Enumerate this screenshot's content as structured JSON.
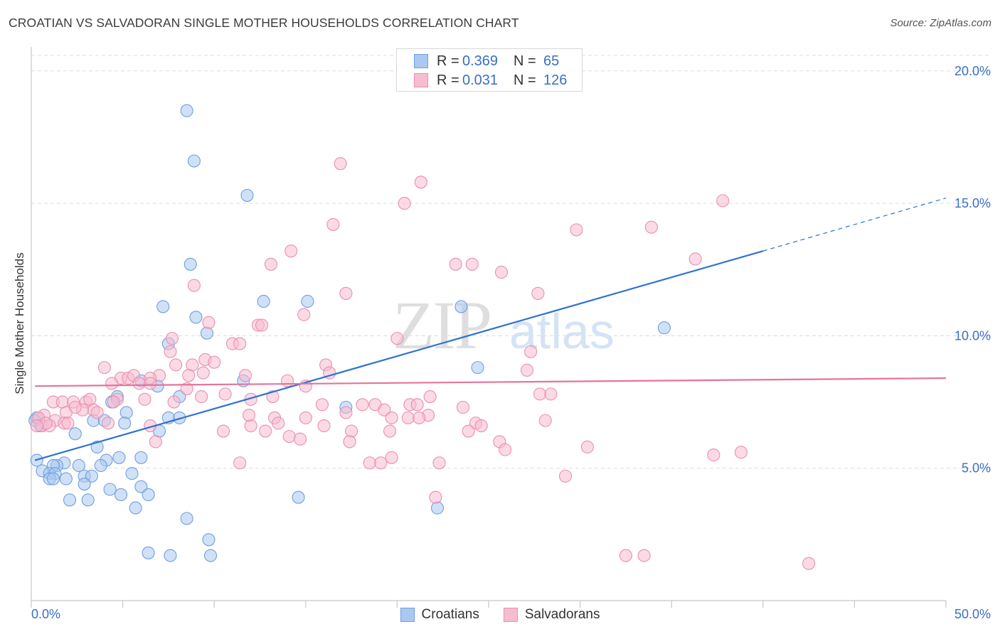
{
  "title": "CROATIAN VS SALVADORAN SINGLE MOTHER HOUSEHOLDS CORRELATION CHART",
  "source": "Source: ZipAtlas.com",
  "legend_top": [
    {
      "r_label": "R =",
      "r_value": "0.369",
      "n_label": "N =",
      "n_value": "65"
    },
    {
      "r_label": "R =",
      "r_value": "0.031",
      "n_label": "N =",
      "n_value": "126"
    }
  ],
  "legend_bottom": [
    "Croatians",
    "Salvadorans"
  ],
  "colors": {
    "croatian_fill": "#aac8f0",
    "croatian_stroke": "#6f9fdc",
    "croatian_line": "#2e72d2",
    "salvadoran_fill": "#f7bcd0",
    "salvadoran_stroke": "#ea8fae",
    "salvadoran_line": "#e5749b",
    "tick_label": "#3a6fc4"
  },
  "chart_data": {
    "type": "scatter",
    "title": "CROATIAN VS SALVADORAN SINGLE MOTHER HOUSEHOLDS CORRELATION CHART",
    "xlabel": "",
    "ylabel": "Single Mother Households",
    "xlim": [
      0,
      50
    ],
    "ylim": [
      0,
      20.8
    ],
    "x_tick_labels": [
      "0.0%",
      "50.0%"
    ],
    "y_ticks": [
      5,
      10,
      15,
      20
    ],
    "y_tick_labels": [
      "5.0%",
      "10.0%",
      "15.0%",
      "20.0%"
    ],
    "grid": true,
    "legend_position": "top-center",
    "watermark": "ZIPatlas",
    "series": [
      {
        "name": "Croatians",
        "R": 0.369,
        "N": 65,
        "trend": {
          "x0": 0.2,
          "y0": 5.3,
          "x1": 40,
          "y1": 13.2,
          "dash_to_x": 50,
          "dash_to_y": 15.2
        },
        "points": [
          [
            8.5,
            18.5
          ],
          [
            8.9,
            16.6
          ],
          [
            11.8,
            15.3
          ],
          [
            8.7,
            12.7
          ],
          [
            7.2,
            11.1
          ],
          [
            12.7,
            11.3
          ],
          [
            15.1,
            11.3
          ],
          [
            9.0,
            10.7
          ],
          [
            9.6,
            10.1
          ],
          [
            23.5,
            11.1
          ],
          [
            34.6,
            10.3
          ],
          [
            7.5,
            9.7
          ],
          [
            24.4,
            8.8
          ],
          [
            11.6,
            8.3
          ],
          [
            6.0,
            8.3
          ],
          [
            6.9,
            8.1
          ],
          [
            4.7,
            7.7
          ],
          [
            8.1,
            7.7
          ],
          [
            4.4,
            7.5
          ],
          [
            5.2,
            7.1
          ],
          [
            17.2,
            7.3
          ],
          [
            7.5,
            6.9
          ],
          [
            8.1,
            6.9
          ],
          [
            3.4,
            6.8
          ],
          [
            4.0,
            6.8
          ],
          [
            5.1,
            6.7
          ],
          [
            0.3,
            6.9
          ],
          [
            0.5,
            6.6
          ],
          [
            7.0,
            6.4
          ],
          [
            2.4,
            6.3
          ],
          [
            3.6,
            5.8
          ],
          [
            4.8,
            5.4
          ],
          [
            6.0,
            5.4
          ],
          [
            4.1,
            5.3
          ],
          [
            0.3,
            5.3
          ],
          [
            1.8,
            5.2
          ],
          [
            2.6,
            5.1
          ],
          [
            1.4,
            5.1
          ],
          [
            1.2,
            5.1
          ],
          [
            3.8,
            5.1
          ],
          [
            0.6,
            4.9
          ],
          [
            1.0,
            4.8
          ],
          [
            1.3,
            4.8
          ],
          [
            5.5,
            4.8
          ],
          [
            2.9,
            4.7
          ],
          [
            3.3,
            4.7
          ],
          [
            1.9,
            4.6
          ],
          [
            1.0,
            4.6
          ],
          [
            1.2,
            4.6
          ],
          [
            2.9,
            4.4
          ],
          [
            4.3,
            4.2
          ],
          [
            6.0,
            4.3
          ],
          [
            4.9,
            4.0
          ],
          [
            6.4,
            4.0
          ],
          [
            2.1,
            3.8
          ],
          [
            3.1,
            3.8
          ],
          [
            14.6,
            3.9
          ],
          [
            5.7,
            3.5
          ],
          [
            22.2,
            3.5
          ],
          [
            8.5,
            3.1
          ],
          [
            9.7,
            2.3
          ],
          [
            6.4,
            1.8
          ],
          [
            7.6,
            1.7
          ],
          [
            9.8,
            1.7
          ],
          [
            0.2,
            6.8
          ]
        ]
      },
      {
        "name": "Salvadorans",
        "R": 0.031,
        "N": 126,
        "trend": {
          "x0": 0.2,
          "y0": 8.1,
          "x1": 50,
          "y1": 8.4
        },
        "points": [
          [
            16.9,
            16.5
          ],
          [
            21.3,
            15.8
          ],
          [
            20.4,
            15.0
          ],
          [
            37.8,
            15.1
          ],
          [
            16.5,
            14.2
          ],
          [
            29.8,
            14.0
          ],
          [
            33.9,
            14.1
          ],
          [
            14.2,
            13.2
          ],
          [
            13.1,
            12.7
          ],
          [
            23.2,
            12.7
          ],
          [
            24.1,
            12.7
          ],
          [
            36.3,
            12.9
          ],
          [
            25.7,
            12.4
          ],
          [
            8.9,
            11.9
          ],
          [
            17.2,
            11.6
          ],
          [
            27.7,
            11.6
          ],
          [
            14.9,
            10.8
          ],
          [
            9.7,
            10.5
          ],
          [
            12.4,
            10.4
          ],
          [
            12.6,
            10.4
          ],
          [
            20.0,
            9.9
          ],
          [
            7.7,
            9.9
          ],
          [
            11.0,
            9.7
          ],
          [
            11.4,
            9.7
          ],
          [
            7.6,
            9.4
          ],
          [
            27.3,
            9.4
          ],
          [
            9.5,
            9.1
          ],
          [
            10.0,
            9.0
          ],
          [
            7.9,
            8.9
          ],
          [
            8.8,
            8.9
          ],
          [
            16.1,
            8.9
          ],
          [
            4.0,
            8.8
          ],
          [
            27.1,
            8.7
          ],
          [
            9.4,
            8.6
          ],
          [
            7.0,
            8.5
          ],
          [
            6.5,
            8.4
          ],
          [
            11.7,
            8.5
          ],
          [
            16.3,
            8.6
          ],
          [
            4.9,
            8.4
          ],
          [
            5.3,
            8.4
          ],
          [
            5.6,
            8.5
          ],
          [
            14.0,
            8.3
          ],
          [
            4.4,
            8.2
          ],
          [
            5.9,
            8.2
          ],
          [
            6.5,
            8.2
          ],
          [
            15.0,
            8.1
          ],
          [
            8.5,
            8.0
          ],
          [
            27.8,
            7.8
          ],
          [
            28.4,
            7.8
          ],
          [
            10.6,
            7.8
          ],
          [
            9.3,
            7.7
          ],
          [
            13.2,
            7.7
          ],
          [
            21.8,
            7.7
          ],
          [
            12.0,
            7.6
          ],
          [
            4.7,
            7.6
          ],
          [
            1.2,
            7.5
          ],
          [
            1.7,
            7.5
          ],
          [
            3.0,
            7.5
          ],
          [
            3.2,
            7.6
          ],
          [
            2.3,
            7.5
          ],
          [
            4.5,
            7.5
          ],
          [
            6.2,
            7.6
          ],
          [
            7.8,
            7.5
          ],
          [
            20.7,
            7.4
          ],
          [
            21.1,
            7.4
          ],
          [
            18.1,
            7.4
          ],
          [
            18.8,
            7.4
          ],
          [
            15.9,
            7.4
          ],
          [
            23.6,
            7.3
          ],
          [
            3.4,
            7.2
          ],
          [
            2.8,
            7.2
          ],
          [
            3.6,
            7.1
          ],
          [
            1.9,
            7.1
          ],
          [
            19.3,
            7.2
          ],
          [
            17.2,
            7.1
          ],
          [
            21.7,
            7.0
          ],
          [
            0.7,
            7.0
          ],
          [
            0.4,
            6.9
          ],
          [
            13.3,
            6.9
          ],
          [
            15.0,
            6.9
          ],
          [
            20.6,
            6.9
          ],
          [
            1.3,
            6.8
          ],
          [
            1.8,
            6.7
          ],
          [
            0.6,
            6.6
          ],
          [
            4.2,
            6.7
          ],
          [
            19.7,
            6.9
          ],
          [
            21.2,
            6.9
          ],
          [
            28.1,
            6.8
          ],
          [
            24.3,
            6.7
          ],
          [
            12.0,
            6.6
          ],
          [
            13.5,
            6.7
          ],
          [
            16.0,
            6.6
          ],
          [
            6.5,
            6.6
          ],
          [
            10.5,
            6.4
          ],
          [
            12.8,
            6.4
          ],
          [
            17.5,
            6.4
          ],
          [
            23.9,
            6.4
          ],
          [
            19.6,
            6.4
          ],
          [
            14.1,
            6.2
          ],
          [
            14.7,
            6.1
          ],
          [
            17.4,
            6.0
          ],
          [
            25.6,
            6.0
          ],
          [
            6.8,
            6.0
          ],
          [
            25.9,
            5.7
          ],
          [
            30.4,
            5.8
          ],
          [
            37.3,
            5.5
          ],
          [
            38.8,
            5.6
          ],
          [
            11.4,
            5.2
          ],
          [
            18.5,
            5.2
          ],
          [
            19.1,
            5.2
          ],
          [
            19.7,
            5.4
          ],
          [
            22.3,
            5.2
          ],
          [
            29.2,
            4.7
          ],
          [
            22.1,
            3.9
          ],
          [
            32.5,
            1.7
          ],
          [
            33.5,
            1.7
          ],
          [
            42.5,
            1.4
          ],
          [
            2.0,
            6.7
          ],
          [
            1.0,
            6.6
          ],
          [
            0.8,
            6.7
          ],
          [
            0.3,
            6.6
          ],
          [
            2.4,
            7.3
          ],
          [
            8.6,
            8.5
          ],
          [
            24.6,
            6.6
          ],
          [
            11.9,
            7.0
          ]
        ]
      }
    ]
  }
}
